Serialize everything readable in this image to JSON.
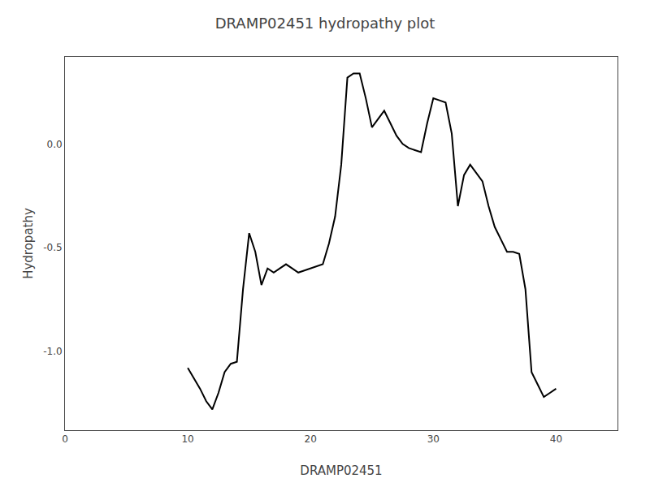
{
  "chart_data": {
    "type": "line",
    "title": "DRAMP02451 hydropathy plot",
    "xlabel": "DRAMP02451",
    "ylabel": "Hydropathy",
    "x": [
      10,
      10.5,
      11,
      11.5,
      12,
      12.5,
      13,
      13.5,
      14,
      14.5,
      15,
      15.5,
      16,
      16.5,
      17,
      17.5,
      18,
      18.5,
      19,
      19.5,
      20,
      20.5,
      21,
      21.5,
      22,
      22.5,
      23,
      23.5,
      24,
      24.5,
      25,
      25.5,
      26,
      26.5,
      27,
      27.5,
      28,
      28.5,
      29,
      29.5,
      30,
      30.5,
      31,
      31.5,
      32,
      32.5,
      33,
      33.5,
      34,
      34.5,
      35,
      35.5,
      36,
      36.5,
      37,
      37.5,
      38,
      38.5,
      39,
      39.5,
      40
    ],
    "values": [
      -1.08,
      -1.13,
      -1.18,
      -1.24,
      -1.28,
      -1.2,
      -1.1,
      -1.06,
      -1.05,
      -0.7,
      -0.43,
      -0.52,
      -0.68,
      -0.6,
      -0.62,
      -0.6,
      -0.58,
      -0.6,
      -0.62,
      -0.61,
      -0.6,
      -0.59,
      -0.58,
      -0.48,
      -0.35,
      -0.1,
      0.32,
      0.34,
      0.34,
      0.22,
      0.08,
      0.12,
      0.16,
      0.1,
      0.04,
      0.0,
      -0.02,
      -0.03,
      -0.04,
      0.1,
      0.22,
      0.21,
      0.2,
      0.05,
      -0.3,
      -0.15,
      -0.1,
      -0.14,
      -0.18,
      -0.3,
      -0.4,
      -0.46,
      -0.52,
      -0.52,
      -0.53,
      -0.7,
      -1.1,
      -1.16,
      -1.22,
      -1.2,
      -1.18
    ],
    "color": "#000000",
    "xlim": [
      0,
      45
    ],
    "ylim": [
      -1.38,
      0.42
    ],
    "xticks": [
      0,
      10,
      20,
      30,
      40
    ],
    "yticks": [
      {
        "value": 0.0,
        "label": "0.0"
      },
      -0.5,
      {
        "value": -1.0,
        "label": "-1.0"
      }
    ],
    "grid": false
  }
}
